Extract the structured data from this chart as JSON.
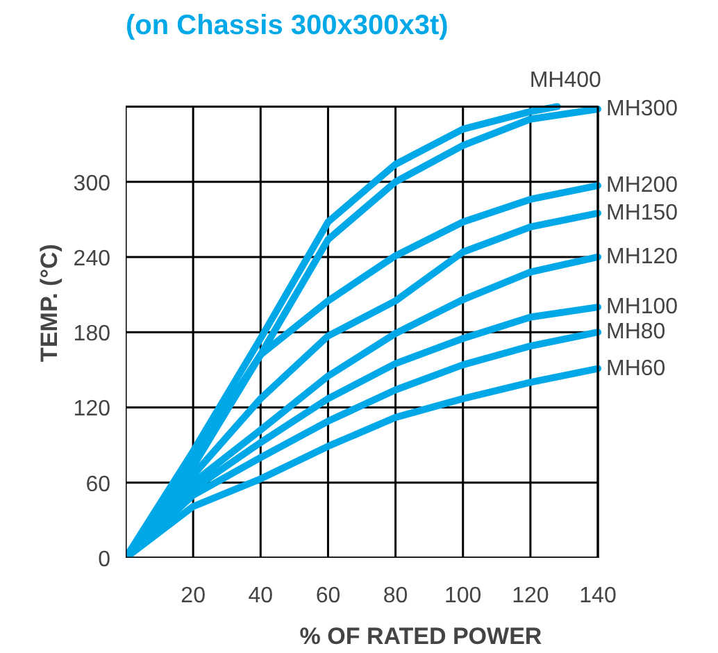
{
  "chart_data": {
    "type": "line",
    "title": "(on Chassis 300x300x3t)",
    "xlabel": "% OF RATED POWER",
    "ylabel": "TEMP. (°C)",
    "xlim": [
      0,
      140
    ],
    "ylim": [
      0,
      360
    ],
    "xticks": [
      20,
      40,
      60,
      80,
      100,
      120,
      140
    ],
    "yticks": [
      0,
      60,
      120,
      180,
      240,
      300
    ],
    "grid": true,
    "marker": "none",
    "line_style": "solid",
    "series": [
      {
        "name": "MH400",
        "color": "#00a8e8",
        "x": [
          0,
          20,
          40,
          60,
          80,
          100,
          120,
          128
        ],
        "values": [
          0,
          85,
          175,
          268,
          314,
          342,
          356,
          360
        ]
      },
      {
        "name": "MH300",
        "color": "#00a8e8",
        "x": [
          0,
          20,
          40,
          60,
          80,
          100,
          120,
          140
        ],
        "values": [
          0,
          73,
          162,
          254,
          300,
          329,
          350,
          358
        ]
      },
      {
        "name": "MH200",
        "color": "#00a8e8",
        "x": [
          0,
          20,
          40,
          60,
          80,
          100,
          120,
          140
        ],
        "values": [
          0,
          80,
          162,
          205,
          241,
          268,
          286,
          297
        ]
      },
      {
        "name": "MH150",
        "color": "#00a8e8",
        "x": [
          0,
          20,
          40,
          60,
          80,
          100,
          120,
          140
        ],
        "values": [
          0,
          66,
          127,
          177,
          205,
          244,
          264,
          275
        ]
      },
      {
        "name": "MH120",
        "color": "#00a8e8",
        "x": [
          0,
          20,
          40,
          60,
          80,
          100,
          120,
          140
        ],
        "values": [
          0,
          60,
          102,
          145,
          179,
          206,
          228,
          240
        ]
      },
      {
        "name": "MH100",
        "color": "#00a8e8",
        "x": [
          0,
          20,
          40,
          60,
          80,
          100,
          120,
          140
        ],
        "values": [
          0,
          55,
          92,
          127,
          155,
          175,
          192,
          200
        ]
      },
      {
        "name": "MH80",
        "color": "#00a8e8",
        "x": [
          0,
          20,
          40,
          60,
          80,
          100,
          120,
          140
        ],
        "values": [
          0,
          50,
          80,
          109,
          134,
          154,
          169,
          180
        ]
      },
      {
        "name": "MH60",
        "color": "#00a8e8",
        "x": [
          0,
          20,
          40,
          60,
          80,
          100,
          120,
          140
        ],
        "values": [
          0,
          41,
          63,
          89,
          112,
          127,
          140,
          151
        ]
      }
    ]
  }
}
